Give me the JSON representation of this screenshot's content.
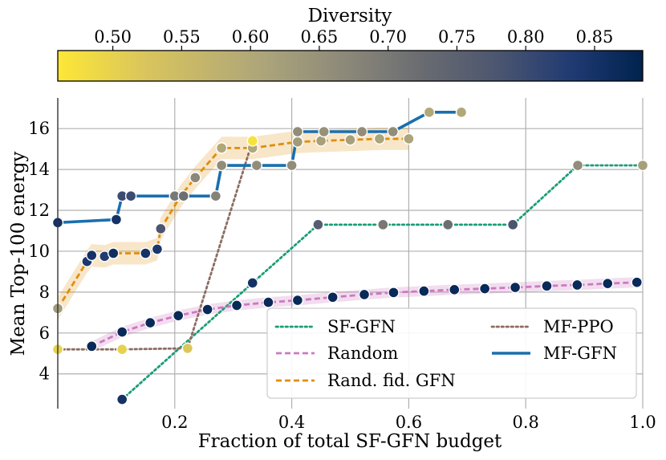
{
  "chart_data": {
    "type": "line",
    "xlabel": "Fraction of total SF-GFN budget",
    "ylabel": "Mean Top-100 energy",
    "xlim": [
      0,
      1.0
    ],
    "ylim": [
      2.3,
      17.5
    ],
    "xticks": [
      0.2,
      0.4,
      0.6,
      0.8,
      1.0
    ],
    "xtick_labels": [
      "0.2",
      "0.4",
      "0.6",
      "0.8",
      "1.0"
    ],
    "yticks": [
      4,
      6,
      8,
      10,
      12,
      14,
      16
    ],
    "ytick_labels": [
      "4",
      "6",
      "8",
      "10",
      "12",
      "14",
      "16"
    ],
    "grid": true,
    "legend_position": "lower-right",
    "colorbar": {
      "title": "Diversity",
      "range": [
        0.46,
        0.885
      ],
      "ticks": [
        0.5,
        0.55,
        0.6,
        0.65,
        0.7,
        0.75,
        0.8,
        0.85
      ],
      "tick_labels": [
        "0.50",
        "0.55",
        "0.60",
        "0.65",
        "0.70",
        "0.75",
        "0.80",
        "0.85"
      ],
      "colormap": "cividis"
    },
    "series": [
      {
        "name": "SF-GFN",
        "color": "#1a9e77",
        "dash": "dotted",
        "x": [
          0.11,
          0.333,
          0.445,
          0.556,
          0.667,
          0.778,
          0.889,
          1.0
        ],
        "y": [
          2.75,
          8.45,
          11.3,
          11.3,
          11.3,
          11.3,
          14.2,
          14.2
        ],
        "diversity": [
          0.85,
          0.85,
          0.76,
          0.7,
          0.72,
          0.78,
          0.66,
          0.62
        ]
      },
      {
        "name": "Random",
        "color": "#cc79c0",
        "dash": "dashed",
        "band": true,
        "x": [
          0.058,
          0.11,
          0.158,
          0.206,
          0.256,
          0.306,
          0.36,
          0.41,
          0.47,
          0.524,
          0.574,
          0.626,
          0.678,
          0.73,
          0.782,
          0.836,
          0.888,
          0.94,
          0.99
        ],
        "y": [
          5.35,
          6.05,
          6.5,
          6.85,
          7.15,
          7.35,
          7.5,
          7.6,
          7.75,
          7.88,
          7.98,
          8.05,
          8.12,
          8.17,
          8.23,
          8.3,
          8.35,
          8.42,
          8.48
        ],
        "diversity": [
          0.87,
          0.87,
          0.87,
          0.87,
          0.87,
          0.87,
          0.87,
          0.87,
          0.87,
          0.87,
          0.87,
          0.87,
          0.87,
          0.87,
          0.87,
          0.87,
          0.87,
          0.87,
          0.87
        ]
      },
      {
        "name": "Rand. fid. GFN",
        "color": "#e08e0b",
        "dash": "dashed",
        "band": true,
        "x": [
          0.0,
          0.05,
          0.058,
          0.08,
          0.095,
          0.15,
          0.17,
          0.176,
          0.21,
          0.235,
          0.28,
          0.333,
          0.41,
          0.45,
          0.5,
          0.55,
          0.6
        ],
        "y": [
          7.2,
          9.5,
          9.8,
          9.75,
          9.9,
          9.9,
          10.1,
          11.1,
          12.7,
          13.6,
          15.05,
          15.05,
          15.35,
          15.4,
          15.45,
          15.5,
          15.5
        ],
        "diversity": [
          0.63,
          0.84,
          0.85,
          0.83,
          0.86,
          0.85,
          0.84,
          0.78,
          0.7,
          0.67,
          0.6,
          0.6,
          0.63,
          0.62,
          0.62,
          0.61,
          0.61
        ]
      },
      {
        "name": "MF-PPO",
        "color": "#8c6d62",
        "dash": "dotted",
        "x": [
          0.0,
          0.11,
          0.222,
          0.333
        ],
        "y": [
          5.2,
          5.2,
          5.25,
          15.4
        ],
        "diversity": [
          0.5,
          0.5,
          0.52,
          0.47
        ]
      },
      {
        "name": "MF-GFN",
        "color": "#1a6fad",
        "dash": "solid",
        "x": [
          0.0,
          0.1,
          0.11,
          0.125,
          0.2,
          0.215,
          0.27,
          0.28,
          0.34,
          0.4,
          0.41,
          0.455,
          0.52,
          0.573,
          0.635,
          0.69
        ],
        "y": [
          11.4,
          11.55,
          12.7,
          12.7,
          12.7,
          12.7,
          12.7,
          14.2,
          14.2,
          14.2,
          15.85,
          15.85,
          15.85,
          15.85,
          16.8,
          16.8
        ],
        "diversity": [
          0.85,
          0.85,
          0.8,
          0.8,
          0.7,
          0.72,
          0.68,
          0.66,
          0.66,
          0.66,
          0.66,
          0.65,
          0.66,
          0.66,
          0.6,
          0.6
        ]
      }
    ]
  }
}
